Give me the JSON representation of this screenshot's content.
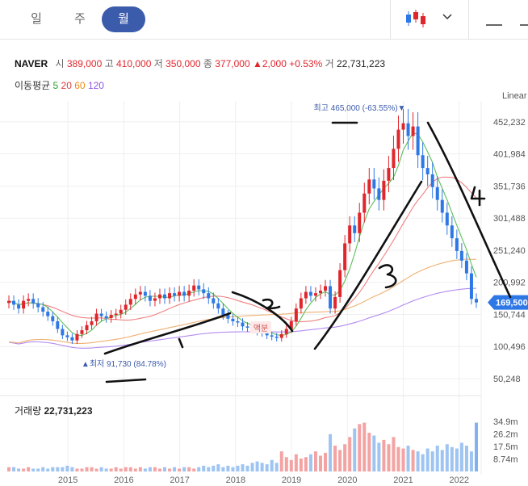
{
  "toolbar": {
    "tabs": [
      {
        "label": "일",
        "active": false
      },
      {
        "label": "주",
        "active": false
      },
      {
        "label": "월",
        "active": true
      }
    ],
    "chart_type_icon": "candlestick-icon",
    "dropdown_icon": "chevron-down-icon",
    "minus_icon": "minus-icon"
  },
  "info": {
    "symbol": "NAVER",
    "open_label": "시",
    "open": "389,000",
    "high_label": "고",
    "high": "410,000",
    "low_label": "저",
    "low": "350,000",
    "close_label": "종",
    "close": "377,000",
    "change": "▲2,000",
    "change_pct": "+0.53%",
    "volume_label": "거",
    "volume": "22,731,223"
  },
  "moving_average": {
    "label": "이동평균",
    "periods": [
      {
        "label": "5",
        "color": "#2ca02c"
      },
      {
        "label": "20",
        "color": "#e03c3c"
      },
      {
        "label": "60",
        "color": "#ee8a1a"
      },
      {
        "label": "120",
        "color": "#8d55e6"
      }
    ]
  },
  "scale_label": "Linear",
  "colors": {
    "up": "#e0262d",
    "down": "#2e78e6",
    "accent": "#3b5bab"
  },
  "chart_data": {
    "type": "candlestick",
    "period": "monthly",
    "y_ticks": [
      "452,232",
      "401,984",
      "351,736",
      "301,488",
      "251,240",
      "200,992",
      "150,744",
      "100,496",
      "50,248"
    ],
    "y_tick_values": [
      452232,
      401984,
      351736,
      301488,
      251240,
      200992,
      150744,
      100496,
      50248
    ],
    "ylim": [
      30000,
      485000
    ],
    "x_ticks": [
      "2015",
      "2016",
      "2017",
      "2018",
      "2019",
      "2020",
      "2021",
      "2022"
    ],
    "x_tick_values": [
      2015,
      2016,
      2017,
      2018,
      2019,
      2020,
      2021,
      2022
    ],
    "current_price_label": "169,500",
    "current_price": 169500,
    "annotations": {
      "high": {
        "text": "최고 465,000 (-63.55%)",
        "value": 465000,
        "date": 2021.55
      },
      "low": {
        "text": "최저 91,730 (84.78%)",
        "value": 91730,
        "date": 2015.75
      },
      "split": {
        "text": "액분",
        "date": 2018.8
      }
    },
    "closes": [
      172000,
      166000,
      160000,
      172000,
      175000,
      168000,
      162000,
      155000,
      148000,
      140000,
      128000,
      118000,
      115000,
      110000,
      120000,
      126000,
      134000,
      140000,
      152000,
      148000,
      145000,
      150000,
      152000,
      158000,
      166000,
      175000,
      182000,
      186000,
      180000,
      172000,
      176000,
      182000,
      176000,
      184000,
      180000,
      186000,
      180000,
      188000,
      196000,
      190000,
      184000,
      176000,
      168000,
      160000,
      150000,
      144000,
      140000,
      138000,
      132000,
      130000,
      128000,
      124000,
      122000,
      118000,
      116000,
      114000,
      120000,
      128000,
      140000,
      160000,
      176000,
      186000,
      180000,
      184000,
      188000,
      195000,
      160000,
      178000,
      220000,
      262000,
      290000,
      278000,
      310000,
      340000,
      362000,
      348000,
      330000,
      360000,
      380000,
      410000,
      440000,
      450000,
      430000,
      445000,
      400000,
      380000,
      370000,
      350000,
      330000,
      310000,
      290000,
      270000,
      250000,
      235000,
      215000,
      175000,
      169500
    ],
    "volume_ticks": [
      "34.9m",
      "26.2m",
      "17.5m",
      "8.74m"
    ],
    "volume_tick_values": [
      34.9,
      26.2,
      17.5,
      8.74
    ],
    "volume_label": "거래량",
    "volume_value": "22,731,223",
    "volumes": [
      3,
      3,
      2,
      2,
      3,
      2,
      2,
      3,
      2,
      3,
      3,
      3,
      4,
      3,
      2,
      2,
      3,
      3,
      2,
      3,
      2,
      2,
      3,
      2,
      3,
      3,
      2,
      3,
      2,
      3,
      3,
      2,
      3,
      2,
      3,
      2,
      3,
      3,
      2,
      3,
      4,
      3,
      4,
      5,
      3,
      4,
      3,
      4,
      5,
      4,
      6,
      7,
      6,
      5,
      8,
      6,
      14,
      10,
      8,
      12,
      9,
      10,
      12,
      14,
      11,
      13,
      26,
      18,
      15,
      19,
      24,
      30,
      33,
      34,
      27,
      25,
      20,
      22,
      19,
      24,
      17,
      16,
      18,
      15,
      14,
      12,
      16,
      14,
      18,
      15,
      19,
      17,
      16,
      20,
      18,
      14,
      34
    ]
  }
}
